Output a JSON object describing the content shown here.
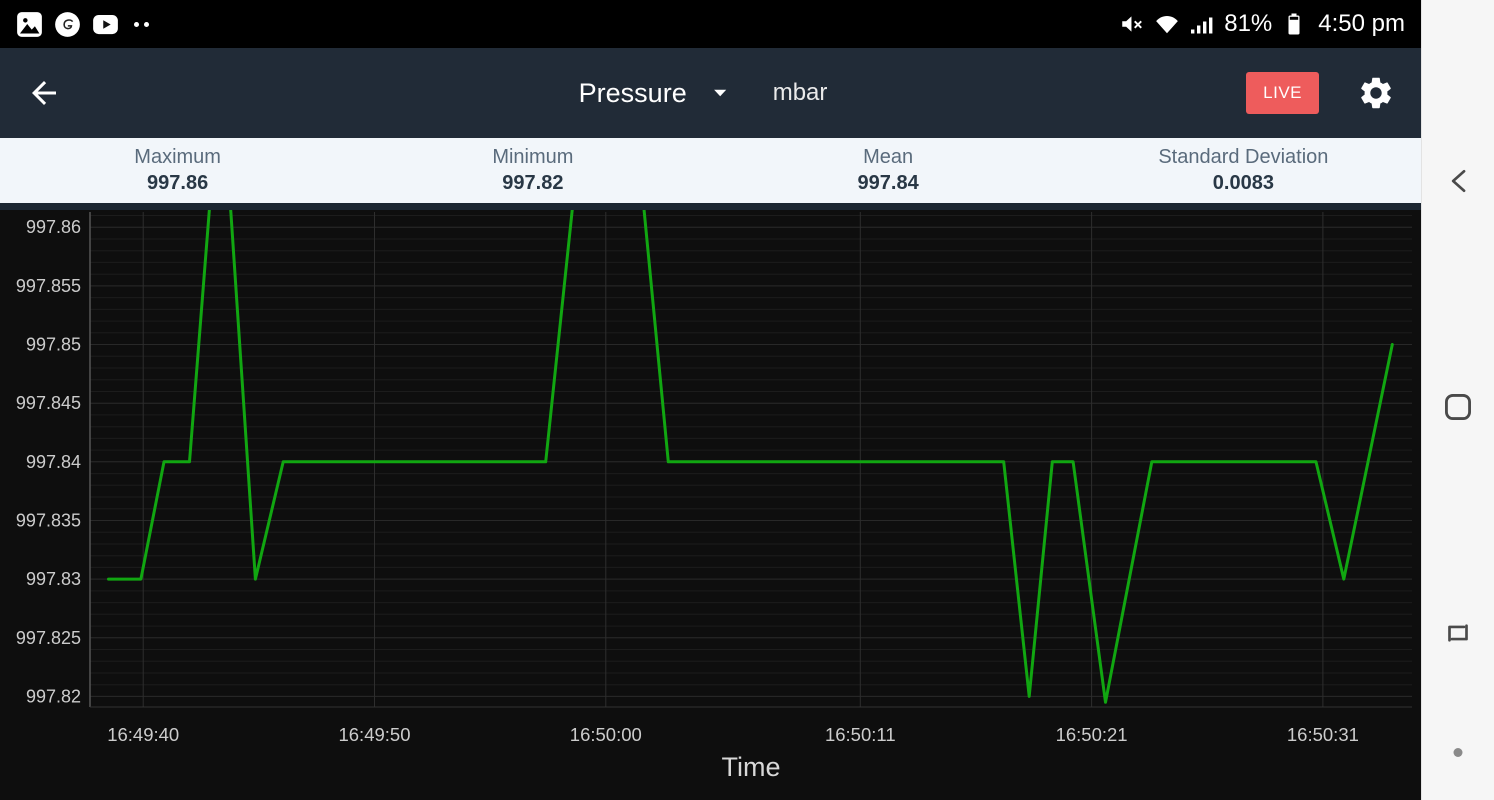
{
  "status_bar": {
    "time": "4:50 pm",
    "battery_percent": "81%",
    "left_icons": [
      "gallery-icon",
      "ge-app-icon",
      "youtube-icon",
      "more-notifications-dots"
    ],
    "right_icons": [
      "volume-mute-icon",
      "wifi-icon",
      "cell-signal-icon",
      "battery-icon"
    ]
  },
  "app_bar": {
    "background": "#212b37",
    "title": "Pressure",
    "unit": "mbar",
    "live_button": "LIVE",
    "live_color": "#ee5c5c"
  },
  "stats": {
    "items": [
      {
        "label": "Maximum",
        "value": "997.86"
      },
      {
        "label": "Minimum",
        "value": "997.82"
      },
      {
        "label": "Mean",
        "value": "997.84"
      },
      {
        "label": "Standard Deviation",
        "value": "0.0083"
      }
    ]
  },
  "chart_data": {
    "type": "line",
    "title": "",
    "xlabel": "Time",
    "ylabel": "",
    "series_name": "Pressure (mbar)",
    "line_color": "#11a611",
    "background": "#0e0e0e",
    "grid": true,
    "legend": false,
    "ylim": [
      997.8191,
      997.8613
    ],
    "xlim": [
      -2.3,
      54.85
    ],
    "y_ticks": [
      997.82,
      997.825,
      997.83,
      997.835,
      997.84,
      997.845,
      997.85,
      997.855,
      997.86
    ],
    "y_minor_step": 0.001,
    "x_ticks": [
      {
        "label": "16:49:40",
        "t": 0
      },
      {
        "label": "16:49:50",
        "t": 10
      },
      {
        "label": "16:50:00",
        "t": 20
      },
      {
        "label": "16:50:11",
        "t": 31
      },
      {
        "label": "16:50:21",
        "t": 41
      },
      {
        "label": "16:50:31",
        "t": 51
      }
    ],
    "points": [
      [
        -1.5,
        997.83
      ],
      [
        -0.1,
        997.83
      ],
      [
        0.9,
        997.84
      ],
      [
        2.0,
        997.84
      ],
      [
        2.9,
        997.8625
      ],
      [
        3.75,
        997.8625
      ],
      [
        4.85,
        997.83
      ],
      [
        6.05,
        997.84
      ],
      [
        17.4,
        997.84
      ],
      [
        18.6,
        997.8625
      ],
      [
        21.6,
        997.8625
      ],
      [
        22.7,
        997.84
      ],
      [
        37.2,
        997.84
      ],
      [
        38.3,
        997.82
      ],
      [
        39.3,
        997.84
      ],
      [
        40.2,
        997.84
      ],
      [
        41.6,
        997.8195
      ],
      [
        43.6,
        997.84
      ],
      [
        50.7,
        997.84
      ],
      [
        51.9,
        997.83
      ],
      [
        54.0,
        997.85
      ]
    ]
  }
}
